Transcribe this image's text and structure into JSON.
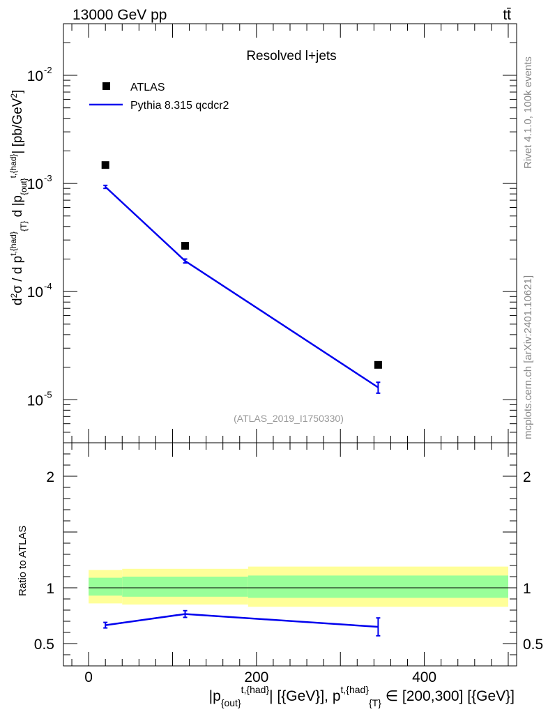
{
  "header": {
    "energy_label": "13000 GeV pp",
    "process_label": "tt̄"
  },
  "side_labels": {
    "rivet": "Rivet 4.1.0,  100k events",
    "source": "mcplots.cern.ch [arXiv:2401.10621]"
  },
  "colors": {
    "data": "#000000",
    "mc": "#0000ee",
    "band_inner": "#99ff99",
    "band_outer": "#ffff99",
    "watermark": "#999999"
  },
  "chart_data": [
    {
      "type": "scatter",
      "panel": "main",
      "title": "Resolved l+jets",
      "watermark": "(ATLAS_2019_I1750330)",
      "ylabel": "d²σ / d p_T^{t,{had}} d |p_{out}^{t,{had}}| [pb/GeV²]",
      "yscale": "log",
      "ylim": [
        4e-06,
        0.03
      ],
      "xlim": [
        -30,
        510
      ],
      "y_ticks": [
        {
          "value": 1e-05,
          "label": "10",
          "exp": "-5"
        },
        {
          "value": 0.0001,
          "label": "10",
          "exp": "-4"
        },
        {
          "value": 0.001,
          "label": "10",
          "exp": "-3"
        },
        {
          "value": 0.01,
          "label": "10",
          "exp": "-2"
        }
      ],
      "legend": {
        "position": "top-left",
        "entries": [
          {
            "name": "ATLAS",
            "marker": "square"
          },
          {
            "name": "Pythia 8.315 qcdcr2",
            "marker": "line"
          }
        ]
      },
      "series": [
        {
          "name": "ATLAS",
          "x": [
            20,
            115,
            345
          ],
          "y": [
            0.00148,
            0.000265,
            2.1e-05
          ]
        },
        {
          "name": "Pythia 8.315 qcdcr2",
          "x": [
            20,
            115,
            345
          ],
          "y": [
            0.00093,
            0.000192,
            1.3e-05
          ],
          "yerr": [
            3e-05,
            8e-06,
            1.5e-06
          ]
        }
      ]
    },
    {
      "type": "line",
      "panel": "ratio",
      "ylabel": "Ratio to ATLAS",
      "ylim": [
        0.3,
        2.3
      ],
      "xlim": [
        -30,
        510
      ],
      "xlabel": "|p_{out}^{t,{had}}| [{GeV}], p_T^{t,{had}} ∈ [200,300] [{GeV}]",
      "x_ticks": [
        0,
        200,
        400
      ],
      "y_ticks": [
        0.5,
        1,
        2
      ],
      "bands": [
        {
          "x0": 0,
          "x1": 40,
          "inner": [
            0.93,
            1.09
          ],
          "outer": [
            0.86,
            1.16
          ]
        },
        {
          "x0": 40,
          "x1": 190,
          "inner": [
            0.92,
            1.1
          ],
          "outer": [
            0.85,
            1.17
          ]
        },
        {
          "x0": 190,
          "x1": 500,
          "inner": [
            0.91,
            1.11
          ],
          "outer": [
            0.83,
            1.19
          ]
        }
      ],
      "series": [
        {
          "name": "Pythia 8.315 qcdcr2 / ATLAS",
          "x": [
            20,
            115,
            345
          ],
          "y": [
            0.665,
            0.765,
            0.65
          ],
          "yerr": [
            0.025,
            0.03,
            0.08
          ]
        }
      ]
    }
  ]
}
